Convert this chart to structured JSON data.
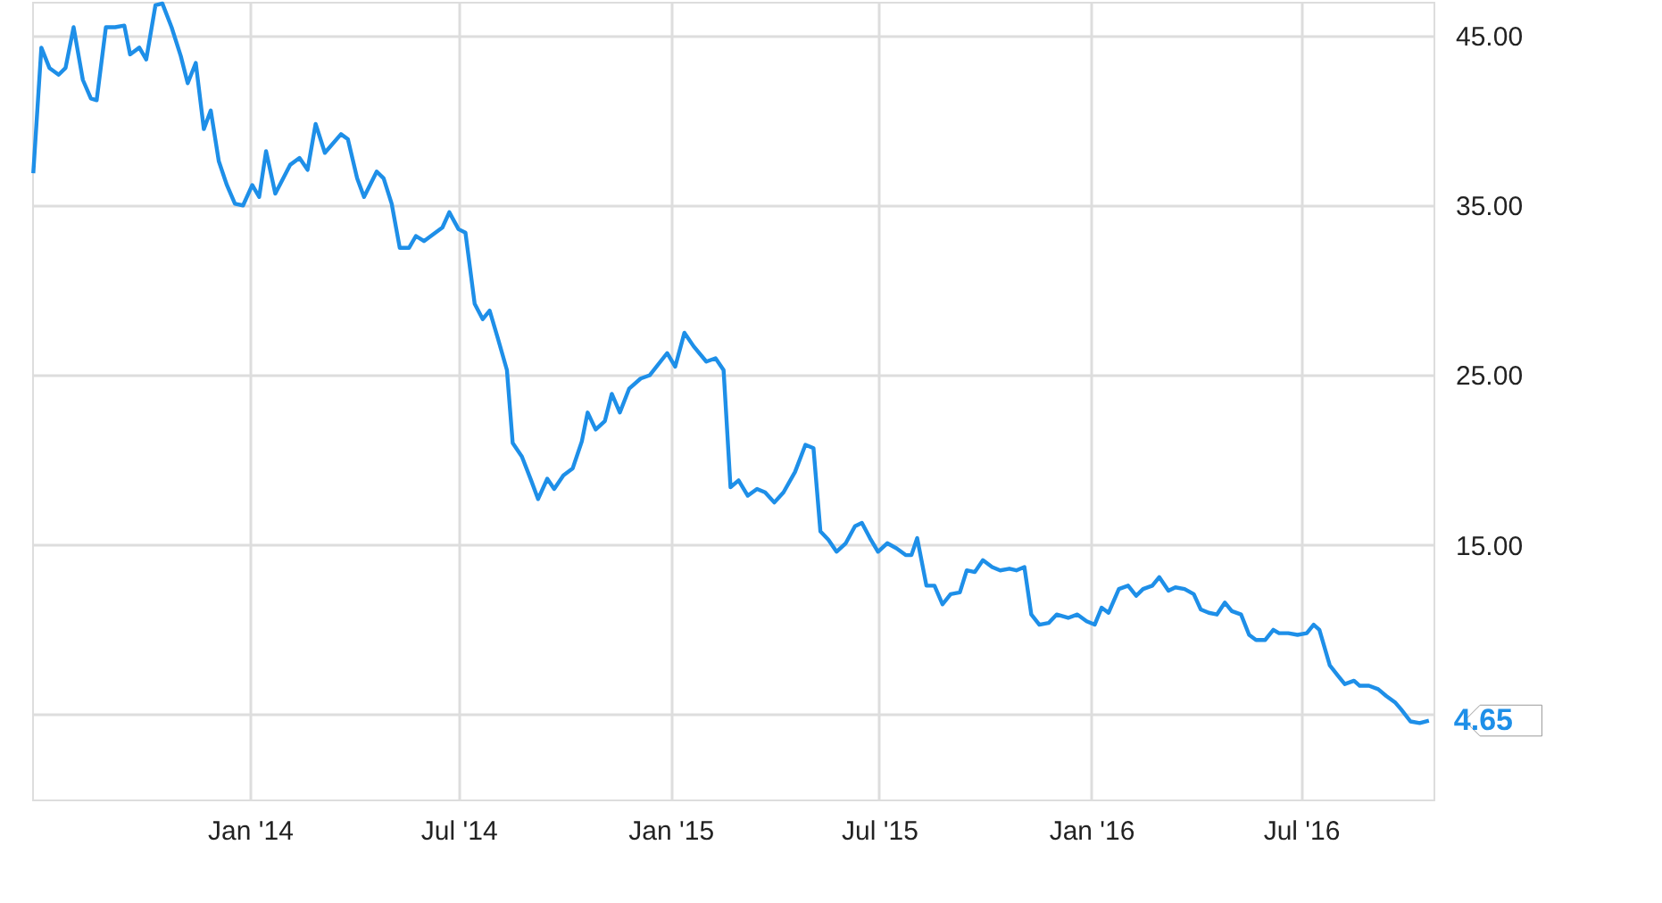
{
  "chart_data": {
    "type": "line",
    "x": [
      "2013-06-27",
      "2013-07-04",
      "2013-07-11",
      "2013-07-19",
      "2013-07-25",
      "2013-08-01",
      "2013-08-09",
      "2013-08-16",
      "2013-08-21",
      "2013-08-29",
      "2013-09-06",
      "2013-09-14",
      "2013-09-19",
      "2013-09-27",
      "2013-10-03",
      "2013-10-11",
      "2013-10-17",
      "2013-10-25",
      "2013-11-02",
      "2013-11-08",
      "2013-11-15",
      "2013-11-22",
      "2013-11-28",
      "2013-12-05",
      "2013-12-12",
      "2013-12-19",
      "2013-12-26",
      "2014-01-03",
      "2014-01-09",
      "2014-01-15",
      "2014-01-23",
      "2014-02-05",
      "2014-02-13",
      "2014-02-20",
      "2014-02-27",
      "2014-03-07",
      "2014-03-21",
      "2014-03-27",
      "2014-04-04",
      "2014-04-10",
      "2014-04-21",
      "2014-04-27",
      "2014-05-04",
      "2014-05-11",
      "2014-05-19",
      "2014-05-25",
      "2014-06-01",
      "2014-06-17",
      "2014-06-23",
      "2014-07-01",
      "2014-07-07",
      "2014-07-15",
      "2014-07-22",
      "2014-07-28",
      "2014-08-04",
      "2014-08-12",
      "2014-08-17",
      "2014-08-25",
      "2014-09-02",
      "2014-09-08",
      "2014-09-16",
      "2014-09-22",
      "2014-09-30",
      "2014-10-08",
      "2014-10-16",
      "2014-10-21",
      "2014-10-28",
      "2014-11-05",
      "2014-11-11",
      "2014-11-18",
      "2014-11-26",
      "2014-12-06",
      "2014-12-14",
      "2014-12-29",
      "2015-01-05",
      "2015-01-13",
      "2015-01-21",
      "2015-02-01",
      "2015-02-09",
      "2015-02-16",
      "2015-02-22",
      "2015-03-01",
      "2015-03-09",
      "2015-03-17",
      "2015-03-24",
      "2015-04-01",
      "2015-04-09",
      "2015-04-19",
      "2015-04-28",
      "2015-05-05",
      "2015-05-11",
      "2015-05-18",
      "2015-05-25",
      "2015-06-02",
      "2015-06-10",
      "2015-06-16",
      "2015-06-23",
      "2015-06-30",
      "2015-07-08",
      "2015-07-16",
      "2015-07-24",
      "2015-07-29",
      "2015-08-03",
      "2015-08-11",
      "2015-08-18",
      "2015-08-25",
      "2015-09-01",
      "2015-09-09",
      "2015-09-15",
      "2015-09-22",
      "2015-09-29",
      "2015-10-07",
      "2015-10-14",
      "2015-10-22",
      "2015-10-28",
      "2015-11-04",
      "2015-11-10",
      "2015-11-17",
      "2015-11-25",
      "2015-12-02",
      "2015-12-12",
      "2015-12-20",
      "2015-12-28",
      "2016-01-04",
      "2016-01-10",
      "2016-01-16",
      "2016-01-25",
      "2016-02-02",
      "2016-02-09",
      "2016-02-15",
      "2016-02-23",
      "2016-02-29",
      "2016-03-08",
      "2016-03-14",
      "2016-03-22",
      "2016-03-30",
      "2016-04-05",
      "2016-04-12",
      "2016-04-19",
      "2016-04-26",
      "2016-05-02",
      "2016-05-10",
      "2016-05-17",
      "2016-05-23",
      "2016-05-31",
      "2016-06-07",
      "2016-06-12",
      "2016-06-20",
      "2016-06-28",
      "2016-07-06",
      "2016-07-12",
      "2016-07-17",
      "2016-07-26",
      "2016-08-02",
      "2016-08-08",
      "2016-08-16",
      "2016-08-21",
      "2016-08-29",
      "2016-09-06",
      "2016-09-13",
      "2016-09-21",
      "2016-09-26",
      "2016-10-04",
      "2016-10-12",
      "2016-10-20"
    ],
    "series": [
      {
        "color": "#1e8fe8",
        "values": [
          36.9,
          44.3,
          43.1,
          42.7,
          43.1,
          45.5,
          42.4,
          41.3,
          41.2,
          45.5,
          45.5,
          45.6,
          43.9,
          44.3,
          43.6,
          46.8,
          46.9,
          45.5,
          43.8,
          42.2,
          43.4,
          39.5,
          40.6,
          37.6,
          36.2,
          35.1,
          35.0,
          36.2,
          35.5,
          38.2,
          35.7,
          37.4,
          37.8,
          37.1,
          39.8,
          38.1,
          39.2,
          38.9,
          36.6,
          35.5,
          37.0,
          36.6,
          35.1,
          32.5,
          32.5,
          33.2,
          32.9,
          33.7,
          34.6,
          33.6,
          33.4,
          29.2,
          28.3,
          28.8,
          27.2,
          25.3,
          21.0,
          20.2,
          18.8,
          17.7,
          18.9,
          18.3,
          19.1,
          19.5,
          21.1,
          22.8,
          21.8,
          22.3,
          23.9,
          22.8,
          24.2,
          24.8,
          25.0,
          26.3,
          25.5,
          27.5,
          26.7,
          25.8,
          26.0,
          25.3,
          18.4,
          18.8,
          17.9,
          18.3,
          18.1,
          17.5,
          18.1,
          19.3,
          20.9,
          20.7,
          15.8,
          15.3,
          14.6,
          15.1,
          16.1,
          16.3,
          15.4,
          14.6,
          15.1,
          14.8,
          14.4,
          14.4,
          15.4,
          12.6,
          12.6,
          11.5,
          12.1,
          12.2,
          13.5,
          13.4,
          14.1,
          13.7,
          13.5,
          13.6,
          13.5,
          13.7,
          10.9,
          10.3,
          10.4,
          10.9,
          10.7,
          10.9,
          10.5,
          10.3,
          11.3,
          11.0,
          12.4,
          12.6,
          12.0,
          12.4,
          12.6,
          13.1,
          12.3,
          12.5,
          12.4,
          12.1,
          11.2,
          11.0,
          10.9,
          11.6,
          11.1,
          10.9,
          9.7,
          9.4,
          9.4,
          10.0,
          9.8,
          9.8,
          9.7,
          9.8,
          10.3,
          10.0,
          7.9,
          7.3,
          6.8,
          7.0,
          6.7,
          6.7,
          6.5,
          6.1,
          5.7,
          5.3,
          4.6,
          4.5,
          4.65
        ]
      }
    ],
    "xlim": [
      "2013-06-26",
      "2016-10-24"
    ],
    "xticks": [
      {
        "value": "2014-01-01",
        "label": "Jan '14"
      },
      {
        "value": "2014-07-01",
        "label": "Jul '14"
      },
      {
        "value": "2015-01-01",
        "label": "Jan '15"
      },
      {
        "value": "2015-07-01",
        "label": "Jul '15"
      },
      {
        "value": "2016-01-01",
        "label": "Jan '16"
      },
      {
        "value": "2016-07-01",
        "label": "Jul '16"
      }
    ],
    "ylim": [
      0,
      47
    ],
    "yticks": [
      {
        "value": 5,
        "label": null
      },
      {
        "value": 15,
        "label": "15.00"
      },
      {
        "value": 25,
        "label": "25.00"
      },
      {
        "value": 35,
        "label": "35.00"
      },
      {
        "value": 45,
        "label": "45.00"
      }
    ],
    "annotations": [
      {
        "text": "4.65",
        "x": "2016-10-20",
        "y": 4.65
      }
    ],
    "grid": true,
    "marker": "none",
    "line_style": "solid"
  }
}
